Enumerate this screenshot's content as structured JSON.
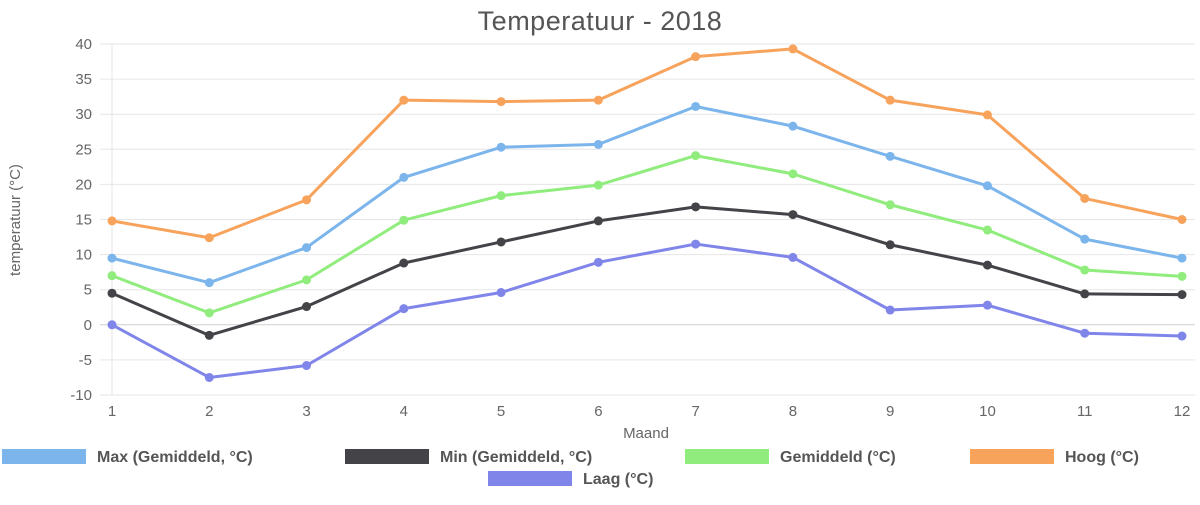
{
  "chart_data": {
    "type": "line",
    "title": "Temperatuur - 2018",
    "xlabel": "Maand",
    "ylabel": "temperatuur (°C)",
    "categories": [
      "1",
      "2",
      "3",
      "4",
      "5",
      "6",
      "7",
      "8",
      "9",
      "10",
      "11",
      "12"
    ],
    "ylim": [
      -10,
      40
    ],
    "yticks": [
      -10,
      -5,
      0,
      5,
      10,
      15,
      20,
      25,
      30,
      35,
      40
    ],
    "grid": true,
    "legend_position": "bottom",
    "series": [
      {
        "name": "Max (Gemiddeld, °C)",
        "color": "#7cb5ec",
        "values": [
          9.5,
          6,
          11,
          21,
          25.3,
          25.7,
          31.1,
          28.3,
          24,
          19.8,
          12.2,
          9.5
        ]
      },
      {
        "name": "Min (Gemiddeld, °C)",
        "color": "#434348",
        "values": [
          4.5,
          -1.5,
          2.6,
          8.8,
          11.8,
          14.8,
          16.8,
          15.7,
          11.4,
          8.5,
          4.4,
          4.3
        ]
      },
      {
        "name": "Gemiddeld (°C)",
        "color": "#90ed7d",
        "values": [
          7,
          1.7,
          6.4,
          14.9,
          18.4,
          19.9,
          24.1,
          21.5,
          17.1,
          13.5,
          7.8,
          6.9
        ]
      },
      {
        "name": "Hoog (°C)",
        "color": "#f7a35c",
        "values": [
          14.8,
          12.4,
          17.8,
          32,
          31.8,
          32,
          38.2,
          39.3,
          32,
          29.9,
          18,
          15
        ]
      },
      {
        "name": "Laag (°C)",
        "color": "#8085e9",
        "values": [
          0,
          -7.5,
          -5.8,
          2.3,
          4.6,
          8.9,
          11.5,
          9.6,
          2.1,
          2.8,
          -1.2,
          -1.6
        ]
      }
    ]
  }
}
